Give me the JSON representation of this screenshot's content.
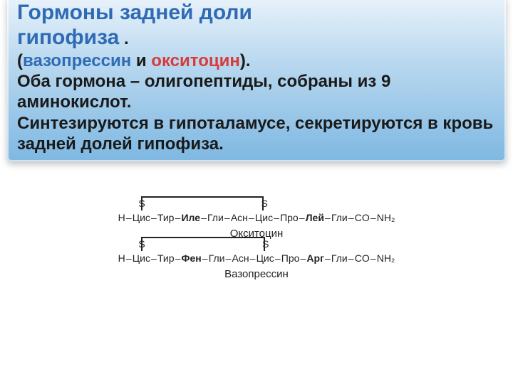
{
  "text_box": {
    "title_l1": "Гормоны задней доли",
    "title_l2_a": "гипофиза",
    "title_l2_b": " .",
    "line2_pref": "(",
    "line2_vaso": "вазопрессин",
    "line2_mid": " и ",
    "line2_oxy": "окситоцин",
    "line2_suf": ").",
    "line3": "Оба гормона – олигопептиды, собраны из 9 аминокислот.",
    "line4": "Синтезируются в гипоталамусе, секретируются в кровь  задней долей гипофиза."
  },
  "colors": {
    "title": "#2f6bb5",
    "body": "#1a1a1a",
    "emph_blue": "#2f6bb5",
    "emph_red": "#d93a3a",
    "box_grad_top": "#eaf3fb",
    "box_grad_mid": "#b9d8ef",
    "box_grad_bot": "#7eb8e2",
    "diagram": "#222222",
    "page_bg": "#ffffff"
  },
  "typography": {
    "title_fontsize": 30,
    "body_fontsize": 24,
    "chain_fontsize": 14,
    "pep_name_fontsize": 15,
    "font_family": "Arial"
  },
  "peptides": [
    {
      "name": "Окситоцин",
      "bridge_from_idx": 1,
      "bridge_to_idx": 6,
      "s_label": "S",
      "residues": [
        {
          "t": "Н",
          "b": false
        },
        {
          "t": "Цис",
          "b": false
        },
        {
          "t": "Тир",
          "b": false
        },
        {
          "t": "Иле",
          "b": true
        },
        {
          "t": "Гли",
          "b": false
        },
        {
          "t": "Асн",
          "b": false
        },
        {
          "t": "Цис",
          "b": false
        },
        {
          "t": "Про",
          "b": false
        },
        {
          "t": "Лей",
          "b": true
        },
        {
          "t": "Гли",
          "b": false
        },
        {
          "t": "CO",
          "b": false
        },
        {
          "t": "NH₂",
          "b": false
        }
      ]
    },
    {
      "name": "Вазопрессин",
      "bridge_from_idx": 1,
      "bridge_to_idx": 6,
      "s_label": "S",
      "residues": [
        {
          "t": "Н",
          "b": false
        },
        {
          "t": "Цис",
          "b": false
        },
        {
          "t": "Тир",
          "b": false
        },
        {
          "t": "Фен",
          "b": true
        },
        {
          "t": "Гли",
          "b": false
        },
        {
          "t": "Асн",
          "b": false
        },
        {
          "t": "Цис",
          "b": false
        },
        {
          "t": "Про",
          "b": false
        },
        {
          "t": "Арг",
          "b": true
        },
        {
          "t": "Гли",
          "b": false
        },
        {
          "t": "CO",
          "b": false
        },
        {
          "t": "NH₂",
          "b": false
        }
      ]
    }
  ]
}
